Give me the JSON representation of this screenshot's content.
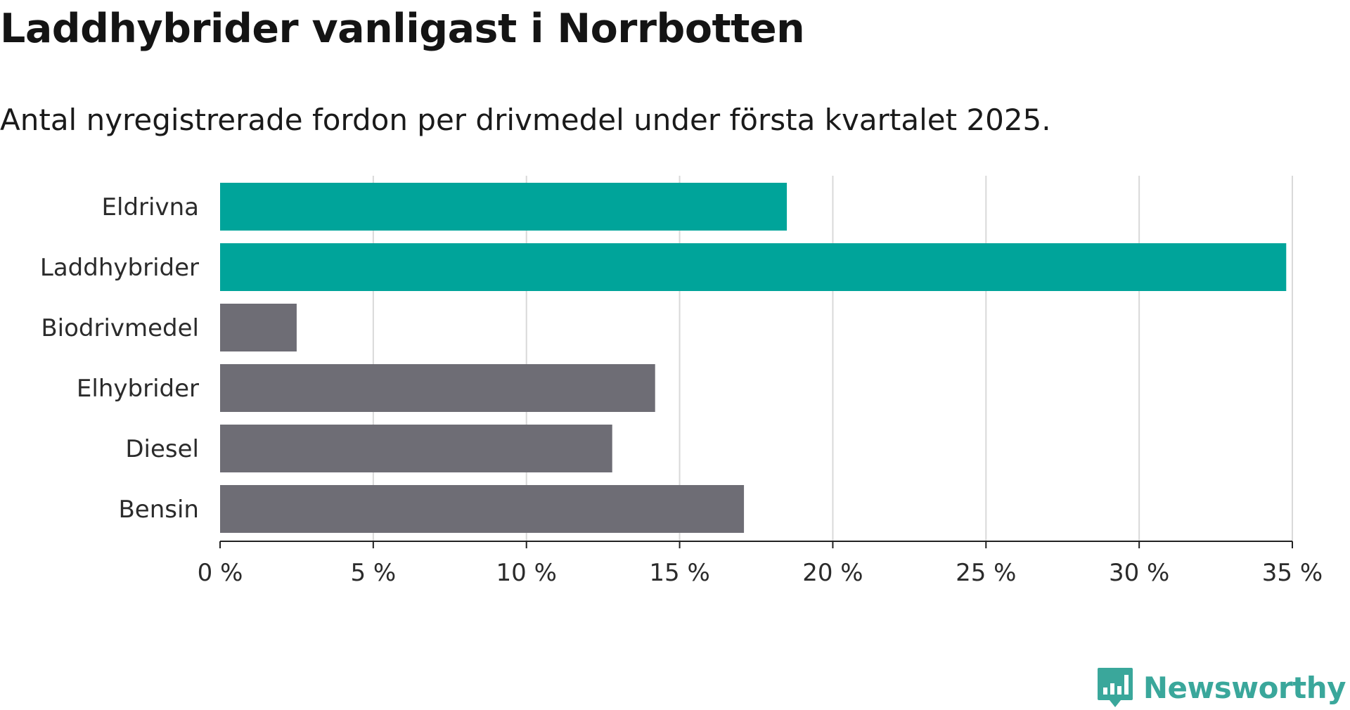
{
  "title": "Laddhybrider vanligast i Norrbotten",
  "subtitle": "Antal nyregistrerade fordon per drivmedel under första kvartalet 2025.",
  "brand": {
    "name": "Newsworthy",
    "logo_icon": "newsworthy-bar-chart-logo-icon",
    "color": "#3aa79b"
  },
  "colors": {
    "highlight": "#00a49a",
    "default": "#6e6d75",
    "grid": "#d9d9d9",
    "axis": "#222222"
  },
  "chart_data": {
    "type": "bar",
    "orientation": "horizontal",
    "categories": [
      "Eldrivna",
      "Laddhybrider",
      "Biodrivmedel",
      "Elhybrider",
      "Diesel",
      "Bensin"
    ],
    "values": [
      18.5,
      34.8,
      2.5,
      14.2,
      12.8,
      17.1
    ],
    "highlighted": [
      true,
      true,
      false,
      false,
      false,
      false
    ],
    "xlim": [
      0,
      35
    ],
    "xticks": [
      0,
      5,
      10,
      15,
      20,
      25,
      30,
      35
    ],
    "xtick_labels": [
      "0 %",
      "5 %",
      "10 %",
      "15 %",
      "20 %",
      "25 %",
      "30 %",
      "35 %"
    ],
    "grid": true
  }
}
